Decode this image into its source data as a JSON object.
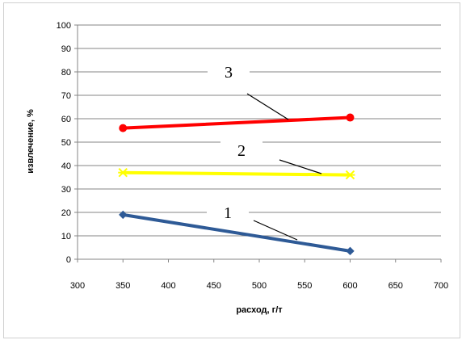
{
  "chart_data": {
    "type": "line",
    "title": "",
    "xlabel": "расход, г/т",
    "ylabel": "извлечение, %",
    "xlim": [
      300,
      700
    ],
    "ylim": [
      0,
      100
    ],
    "x_ticks": [
      300,
      350,
      400,
      450,
      500,
      550,
      600,
      650,
      700
    ],
    "y_ticks": [
      0,
      10,
      20,
      30,
      40,
      50,
      60,
      70,
      80,
      90,
      100
    ],
    "grid": "horizontal",
    "legend": "none",
    "series": [
      {
        "label": "1",
        "color": "#2e5a96",
        "marker": "diamond",
        "x": [
          350,
          600
        ],
        "y": [
          19,
          3.5
        ]
      },
      {
        "label": "2",
        "color": "#ffff00",
        "marker": "x",
        "x": [
          350,
          600
        ],
        "y": [
          37,
          36
        ]
      },
      {
        "label": "3",
        "color": "#ff0000",
        "marker": "circle",
        "x": [
          350,
          600
        ],
        "y": [
          56,
          60.5
        ]
      }
    ],
    "annotations": [
      {
        "text": "3"
      },
      {
        "text": "2"
      },
      {
        "text": "1"
      }
    ]
  }
}
